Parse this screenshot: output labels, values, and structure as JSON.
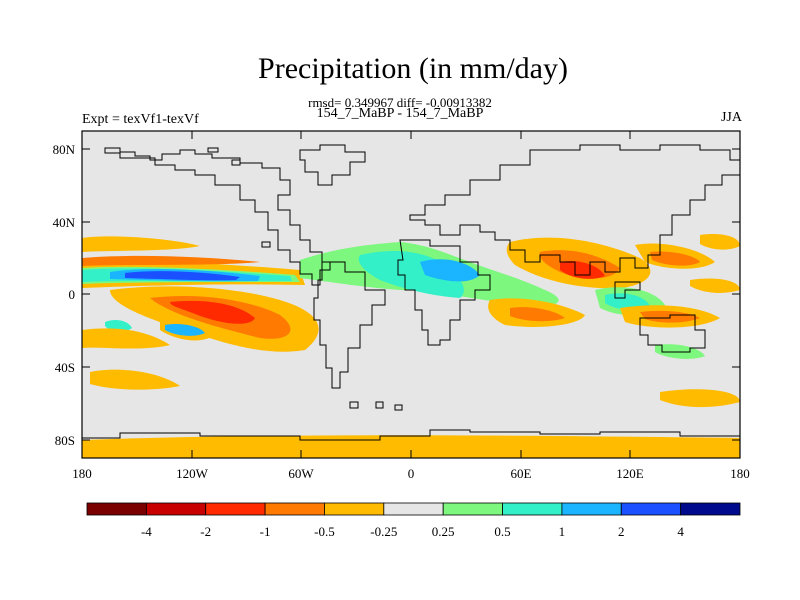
{
  "title": "Precipitation (in mm/day)",
  "stats": "rmsd= 0.349967 diff= -0.00913382",
  "subtitle": "154_7_MaBP - 154_7_MaBP",
  "expt_label": "Expt = texVf1-texVf",
  "season": "JJA",
  "lat_ticks": [
    "80N",
    "40N",
    "0",
    "40S",
    "80S"
  ],
  "lon_ticks": [
    "180",
    "120W",
    "60W",
    "0",
    "60E",
    "120E",
    "180"
  ],
  "colorbar": {
    "colors": [
      "#7a0000",
      "#c80000",
      "#ff2a00",
      "#ff7a00",
      "#ffbb00",
      "#e6e6e6",
      "#7df77d",
      "#33f0c8",
      "#1ab4ff",
      "#1a50ff",
      "#000a8c"
    ],
    "labels": [
      "-4",
      "-2",
      "-1",
      "-0.5",
      "-0.25",
      "0.25",
      "0.5",
      "1",
      "2",
      "4"
    ]
  },
  "colors": {
    "ocean_land_background": "#e6e6e6",
    "coastline": "#000000"
  }
}
